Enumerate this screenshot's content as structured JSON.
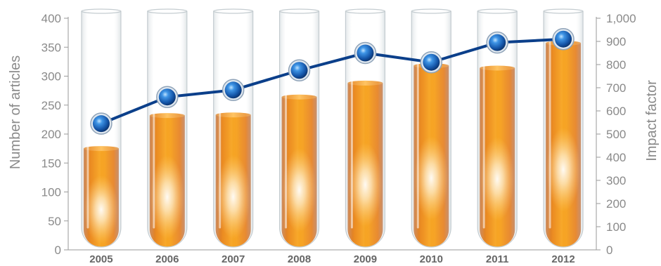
{
  "chart_data": {
    "type": "bar",
    "categories": [
      "2005",
      "2006",
      "2007",
      "2008",
      "2009",
      "2010",
      "2011",
      "2012"
    ],
    "series": [
      {
        "type": "bar",
        "axis": "left",
        "values": [
          175,
          232,
          233,
          264,
          288,
          318,
          314,
          357
        ]
      },
      {
        "type": "line",
        "axis": "right",
        "values": [
          545,
          660,
          690,
          775,
          850,
          810,
          895,
          910
        ]
      }
    ],
    "ylabel": "Number of articles",
    "y2label": "Impact factor",
    "ylim": [
      0,
      400
    ],
    "y2lim": [
      0,
      1000
    ],
    "yticks": [
      "0",
      "50",
      "100",
      "150",
      "200",
      "250",
      "300",
      "350",
      "400"
    ],
    "y2ticks": [
      "0",
      "100",
      "200",
      "300",
      "400",
      "500",
      "600",
      "700",
      "800",
      "900",
      "1,000"
    ],
    "grid": false,
    "colors": {
      "bar": "#f08a00",
      "line": "#0b3f8a",
      "marker": "#1f6fd0",
      "axis": "#9a9a9a",
      "tube": "#dfe5e8"
    }
  }
}
